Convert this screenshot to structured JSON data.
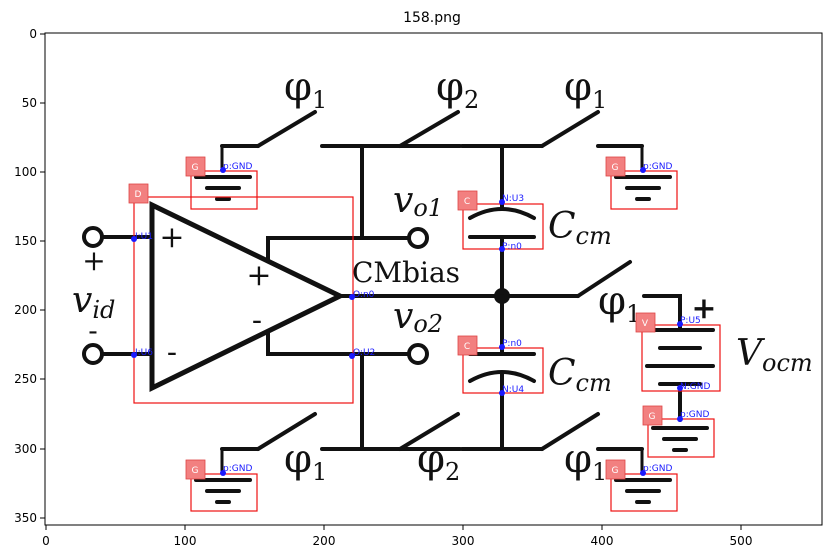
{
  "figure": {
    "title": "158.png",
    "x_ticks": [
      "0",
      "100",
      "200",
      "300",
      "400",
      "500"
    ],
    "y_ticks": [
      "0",
      "50",
      "100",
      "150",
      "200",
      "250",
      "300",
      "350"
    ]
  },
  "circuit": {
    "phi1": "φ",
    "phi1_sub": "1",
    "phi2": "φ",
    "phi2_sub": "2",
    "vo1": "v",
    "vo1_sub": "o1",
    "vo2": "v",
    "vo2_sub": "o2",
    "vid": "v",
    "vid_sub": "id",
    "cm": "C",
    "cm_sub": "cm",
    "vocm": "V",
    "vocm_sub": "ocm",
    "cmbias": "CMbias",
    "plus": "+",
    "minus": "-"
  },
  "annotations": {
    "tags": {
      "ground": "G",
      "opamp": "D",
      "capacitor": "C",
      "source": "V"
    },
    "pins": {
      "gnd_p": "p:GND",
      "u1": "I:U1",
      "u6": "I:U6",
      "opamp_out_n0": "O:n0",
      "opamp_out_u2": "O:U2",
      "cap1_n": "N:U3",
      "cap1_p": "P:n0",
      "cap2_p": "P:n0",
      "cap2_n": "N:U4",
      "vocm_p": "P:U5",
      "vocm_n": "N:GND"
    }
  }
}
